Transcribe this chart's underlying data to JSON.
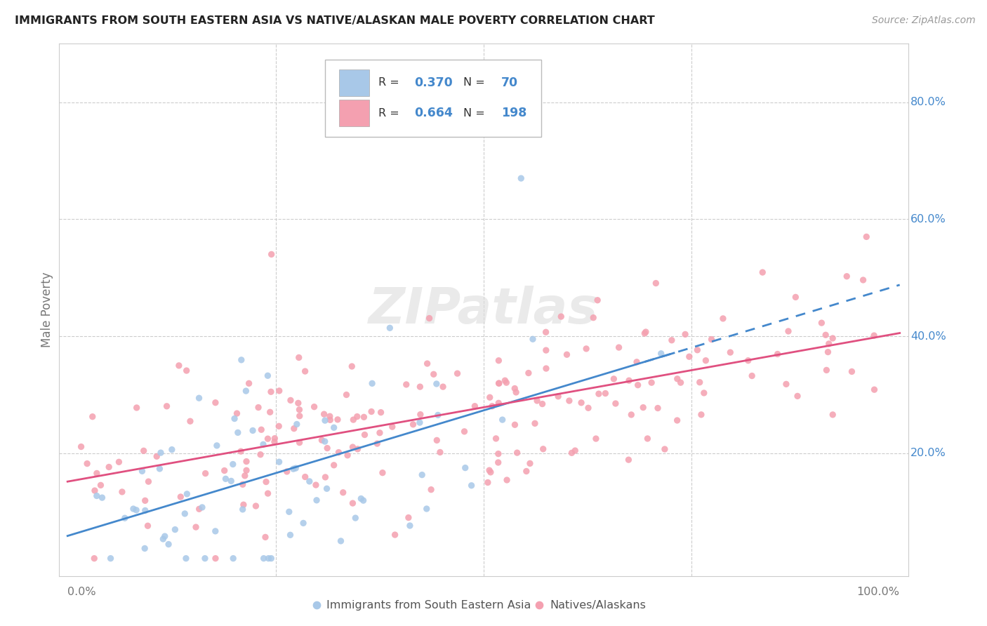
{
  "title": "IMMIGRANTS FROM SOUTH EASTERN ASIA VS NATIVE/ALASKAN MALE POVERTY CORRELATION CHART",
  "source": "Source: ZipAtlas.com",
  "ylabel": "Male Poverty",
  "color_blue": "#a8c8e8",
  "color_pink": "#f4a0b0",
  "color_blue_line": "#4488cc",
  "color_pink_line": "#e05080",
  "color_blue_text": "#4488cc",
  "color_axis_text": "#777777",
  "grid_color": "#cccccc",
  "watermark_color": "#dddddd",
  "legend_r1": "0.370",
  "legend_n1": "70",
  "legend_r2": "0.664",
  "legend_n2": "198",
  "blue_intercept": 0.08,
  "blue_slope": 0.3,
  "pink_intercept": 0.14,
  "pink_slope": 0.26,
  "ymin": 0.0,
  "ymax": 0.9,
  "xmin": 0.0,
  "xmax": 1.0,
  "ytick_vals": [
    0.2,
    0.4,
    0.6,
    0.8
  ],
  "ytick_labels": [
    "20.0%",
    "40.0%",
    "60.0%",
    "80.0%"
  ],
  "xtick_left": "0.0%",
  "xtick_right": "100.0%"
}
